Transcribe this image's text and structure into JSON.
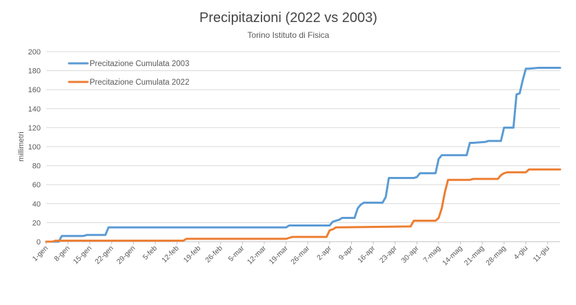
{
  "chart_data": {
    "type": "line",
    "title": "Precipitazioni (2022 vs 2003)",
    "subtitle": "Torino Istituto di Fisica",
    "ylabel": "millimetri",
    "xlabel": "",
    "ylim": [
      0,
      200
    ],
    "yticks": [
      0,
      20,
      40,
      60,
      80,
      100,
      120,
      140,
      160,
      180,
      200
    ],
    "grid": true,
    "legend_position": "top-left",
    "xtick_labels": [
      "1-gen",
      "8-gen",
      "15-gen",
      "22-gen",
      "29-gen",
      "5-feb",
      "12-feb",
      "19-feb",
      "26-feb",
      "5-mar",
      "12-mar",
      "19-mar",
      "26-mar",
      "2-apr",
      "9-apr",
      "16-apr",
      "23-apr",
      "30-apr",
      "7-mag",
      "14-mag",
      "21-mag",
      "28-mag",
      "4-giu",
      "11-giu"
    ],
    "series": [
      {
        "name": "Precitazione Cumulata 2003",
        "color": "#5b9bd5",
        "x": [
          "1-gen",
          "5-gen",
          "6-gen",
          "7-gen",
          "8-gen",
          "13-gen",
          "14-gen",
          "20-gen",
          "21-gen",
          "19-mar",
          "20-mar",
          "2-apr",
          "3-apr",
          "4-apr",
          "5-apr",
          "6-apr",
          "10-apr",
          "11-apr",
          "12-apr",
          "13-apr",
          "19-apr",
          "20-apr",
          "21-apr",
          "29-apr",
          "30-apr",
          "1-mag",
          "6-mag",
          "7-mag",
          "8-mag",
          "9-mag",
          "16-mag",
          "17-mag",
          "18-mag",
          "22-mag",
          "23-mag",
          "27-mag",
          "28-mag",
          "31-mag",
          "1-giu",
          "2-giu",
          "3-giu",
          "4-giu",
          "5-giu",
          "8-giu",
          "15-giu"
        ],
        "values": [
          0,
          0,
          6,
          6,
          6,
          6,
          7,
          7,
          15,
          15,
          17,
          17,
          21,
          22,
          23,
          25,
          25,
          35,
          39,
          41,
          41,
          47,
          67,
          67,
          68,
          72,
          72,
          87,
          91,
          91,
          91,
          104,
          104,
          105,
          106,
          106,
          120,
          120,
          155,
          156,
          170,
          182,
          182,
          183,
          183
        ]
      },
      {
        "name": "Precitazione Cumulata 2022",
        "color": "#ed7d31",
        "x": [
          "1-gen",
          "3-gen",
          "4-gen",
          "14-feb",
          "15-feb",
          "19-mar",
          "20-mar",
          "21-mar",
          "1-apr",
          "2-apr",
          "3-apr",
          "4-apr",
          "28-apr",
          "29-apr",
          "30-apr",
          "6-mag",
          "7-mag",
          "8-mag",
          "9-mag",
          "10-mag",
          "17-mag",
          "18-mag",
          "26-mag",
          "27-mag",
          "28-mag",
          "29-mag",
          "4-giu",
          "5-giu",
          "15-giu"
        ],
        "values": [
          0,
          0,
          1,
          1,
          3,
          3,
          4,
          5,
          5,
          12,
          13,
          15,
          16,
          22,
          22,
          22,
          25,
          35,
          52,
          65,
          65,
          66,
          66,
          70,
          72,
          73,
          73,
          76,
          76
        ]
      }
    ]
  }
}
